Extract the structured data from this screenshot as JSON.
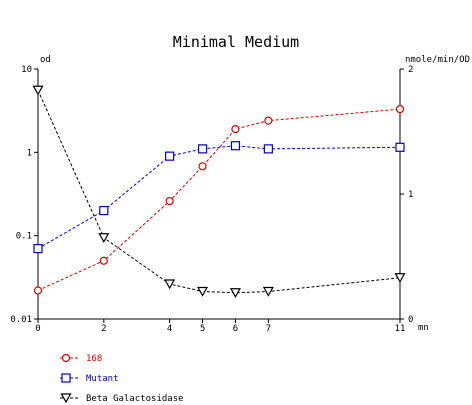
{
  "chart_data": {
    "type": "line",
    "title": "Minimal Medium",
    "xlabel": "mn",
    "ylabel_left": "od",
    "ylabel_right": "nmole/min/OD",
    "x_ticks": [
      0,
      2,
      4,
      5,
      6,
      7,
      11
    ],
    "x_range": [
      0,
      11
    ],
    "left_axis": {
      "scale": "log",
      "range": [
        0.01,
        10
      ],
      "ticks": [
        "0.01",
        "0.1",
        "1",
        "10"
      ],
      "tick_values": [
        0.01,
        0.1,
        1,
        10
      ]
    },
    "right_axis": {
      "scale": "linear",
      "range": [
        0,
        2
      ],
      "ticks": [
        "0",
        "1",
        "2"
      ],
      "tick_values": [
        0,
        1,
        2
      ]
    },
    "grid": false,
    "legend_position": "bottom-left",
    "series": [
      {
        "name": "168",
        "axis": "left",
        "color": "#dd0000",
        "marker": "circle",
        "x": [
          0,
          2,
          4,
          5,
          6,
          7,
          11
        ],
        "y": [
          0.022,
          0.05,
          0.26,
          0.68,
          1.9,
          2.4,
          3.3
        ]
      },
      {
        "name": "Mutant",
        "axis": "left",
        "color": "#0000cc",
        "marker": "square",
        "x": [
          0,
          2,
          4,
          5,
          6,
          7,
          11
        ],
        "y": [
          0.07,
          0.2,
          0.9,
          1.1,
          1.2,
          1.1,
          1.15
        ]
      },
      {
        "name": "Beta Galactosidase",
        "axis": "right",
        "color": "#000000",
        "marker": "triangle-down",
        "x": [
          0,
          2,
          4,
          5,
          6,
          7,
          11
        ],
        "y": [
          1.83,
          0.65,
          0.28,
          0.22,
          0.21,
          0.22,
          0.33
        ]
      }
    ]
  }
}
